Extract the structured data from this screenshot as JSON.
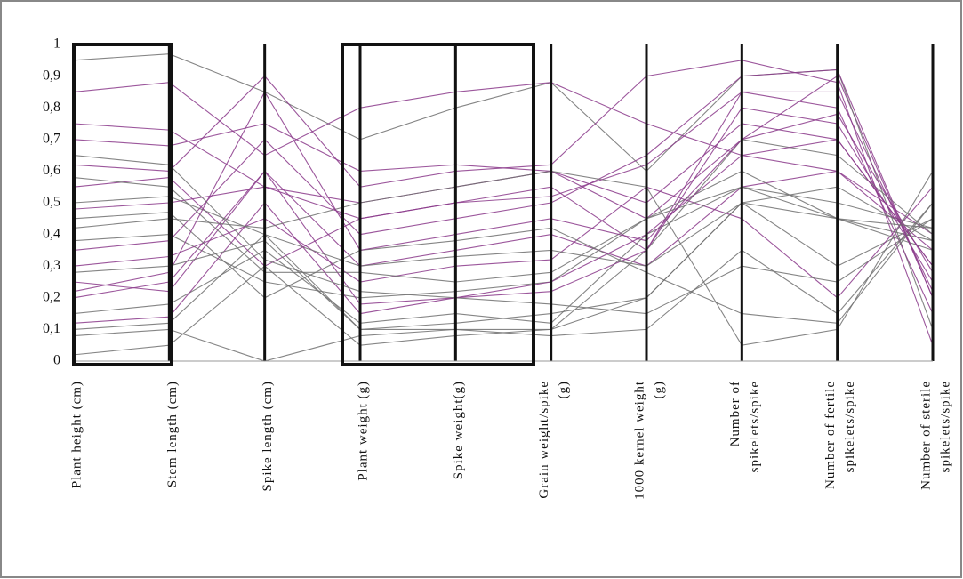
{
  "chart_data": {
    "type": "parallel",
    "categories": [
      [
        "Plant height (cm)"
      ],
      [
        "Stem length (cm)"
      ],
      [
        "Spike length (cm)"
      ],
      [
        "Plant weight (g)"
      ],
      [
        "Spike weight(g)"
      ],
      [
        "Grain weight/spike",
        "(g)"
      ],
      [
        "1000 kernel weight",
        "(g)"
      ],
      [
        "Number of",
        "spikelets/spike"
      ],
      [
        "Number of fertile",
        "spikelets/spike"
      ],
      [
        "Number of sterile",
        "spikelets/spike"
      ]
    ],
    "ylim": [
      0,
      1
    ],
    "yticks": [
      0,
      {
        "value": 0.1,
        "label": "0,1"
      },
      {
        "value": 0.2,
        "label": "0,2"
      },
      {
        "value": 0.3,
        "label": "0,3"
      },
      {
        "value": 0.4,
        "label": "0,4"
      },
      {
        "value": 0.5,
        "label": "0,5"
      },
      {
        "value": 0.6,
        "label": "0,6"
      },
      {
        "value": 0.7,
        "label": "0,7"
      },
      {
        "value": 0.8,
        "label": "0,8"
      },
      {
        "value": 0.9,
        "label": "0,9"
      },
      1
    ],
    "series": [
      {
        "color": "#8b3a8b",
        "values": [
          0.75,
          0.73,
          0.55,
          0.5,
          0.55,
          0.6,
          0.45,
          0.7,
          0.9,
          0.2
        ]
      },
      {
        "color": "#707070",
        "values": [
          0.95,
          0.97,
          0.85,
          0.7,
          0.8,
          0.88,
          0.6,
          0.9,
          0.92,
          0.1
        ]
      },
      {
        "color": "#8b3a8b",
        "values": [
          0.2,
          0.25,
          0.6,
          0.3,
          0.35,
          0.4,
          0.3,
          0.55,
          0.6,
          0.4
        ]
      },
      {
        "color": "#707070",
        "values": [
          0.1,
          0.12,
          0.4,
          0.1,
          0.12,
          0.15,
          0.2,
          0.5,
          0.3,
          0.45
        ]
      },
      {
        "color": "#8b3a8b",
        "values": [
          0.55,
          0.58,
          0.3,
          0.45,
          0.5,
          0.55,
          0.35,
          0.85,
          0.8,
          0.15
        ]
      },
      {
        "color": "#707070",
        "values": [
          0.38,
          0.4,
          0.25,
          0.2,
          0.22,
          0.25,
          0.45,
          0.6,
          0.45,
          0.38
        ]
      },
      {
        "color": "#8b3a8b",
        "values": [
          0.62,
          0.6,
          0.9,
          0.55,
          0.6,
          0.62,
          0.9,
          0.95,
          0.88,
          0.05
        ]
      },
      {
        "color": "#707070",
        "values": [
          0.02,
          0.05,
          0.3,
          0.05,
          0.08,
          0.1,
          0.35,
          0.7,
          0.65,
          0.4
        ]
      },
      {
        "color": "#8b3a8b",
        "values": [
          0.3,
          0.33,
          0.45,
          0.25,
          0.3,
          0.32,
          0.55,
          0.45,
          0.2,
          0.55
        ]
      },
      {
        "color": "#707070",
        "values": [
          0.45,
          0.47,
          0.2,
          0.35,
          0.38,
          0.42,
          0.28,
          0.15,
          0.12,
          0.5
        ]
      },
      {
        "color": "#8b3a8b",
        "values": [
          0.7,
          0.68,
          0.75,
          0.6,
          0.62,
          0.6,
          0.5,
          0.75,
          0.7,
          0.3
        ]
      },
      {
        "color": "#707070",
        "values": [
          0.15,
          0.18,
          0.35,
          0.12,
          0.15,
          0.12,
          0.4,
          0.55,
          0.5,
          0.42
        ]
      },
      {
        "color": "#8b3a8b",
        "values": [
          0.25,
          0.22,
          0.6,
          0.18,
          0.2,
          0.22,
          0.35,
          0.8,
          0.75,
          0.25
        ]
      },
      {
        "color": "#707070",
        "values": [
          0.5,
          0.52,
          0.4,
          0.3,
          0.33,
          0.35,
          0.3,
          0.5,
          0.55,
          0.38
        ]
      },
      {
        "color": "#8b3a8b",
        "values": [
          0.85,
          0.88,
          0.65,
          0.8,
          0.85,
          0.88,
          0.75,
          0.65,
          0.6,
          0.35
        ]
      },
      {
        "color": "#707070",
        "values": [
          0.08,
          0.1,
          0.0,
          0.08,
          0.1,
          0.08,
          0.1,
          0.35,
          0.15,
          0.5
        ]
      },
      {
        "color": "#8b3a8b",
        "values": [
          0.35,
          0.38,
          0.7,
          0.4,
          0.45,
          0.5,
          0.65,
          0.9,
          0.92,
          0.2
        ]
      },
      {
        "color": "#707070",
        "values": [
          0.58,
          0.55,
          0.28,
          0.28,
          0.25,
          0.28,
          0.45,
          0.55,
          0.45,
          0.35
        ]
      },
      {
        "color": "#8b3a8b",
        "values": [
          0.12,
          0.14,
          0.5,
          0.15,
          0.2,
          0.25,
          0.4,
          0.65,
          0.7,
          0.3
        ]
      },
      {
        "color": "#707070",
        "values": [
          0.42,
          0.45,
          0.42,
          0.5,
          0.55,
          0.6,
          0.55,
          0.05,
          0.1,
          0.6
        ]
      },
      {
        "color": "#8b3a8b",
        "values": [
          0.22,
          0.28,
          0.85,
          0.35,
          0.4,
          0.45,
          0.38,
          0.7,
          0.78,
          0.28
        ]
      },
      {
        "color": "#707070",
        "values": [
          0.65,
          0.62,
          0.32,
          0.22,
          0.2,
          0.18,
          0.15,
          0.3,
          0.25,
          0.45
        ]
      },
      {
        "color": "#8b3a8b",
        "values": [
          0.48,
          0.5,
          0.55,
          0.45,
          0.5,
          0.52,
          0.62,
          0.85,
          0.85,
          0.22
        ]
      },
      {
        "color": "#707070",
        "values": [
          0.28,
          0.3,
          0.38,
          0.1,
          0.1,
          0.1,
          0.2,
          0.5,
          0.45,
          0.42
        ]
      }
    ]
  }
}
